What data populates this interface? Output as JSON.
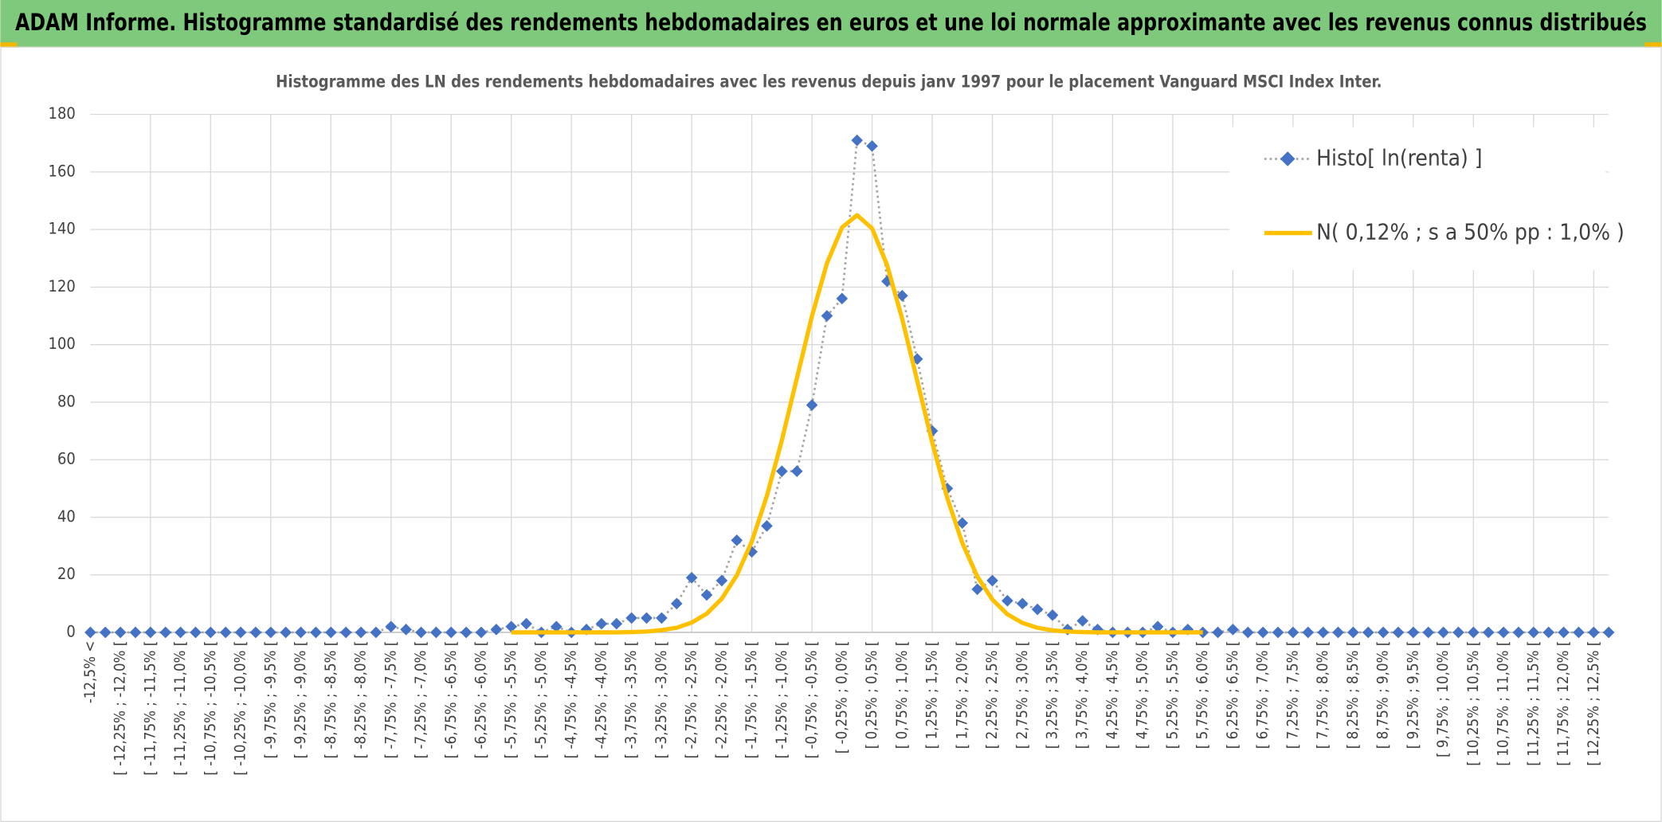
{
  "header": {
    "title": "ADAM Informe. Histogramme standardisé des rendements hebdomadaires en euros et une loi normale approximante avec les revenus connus distribués"
  },
  "chart_data": {
    "type": "line",
    "title": "Histogramme des LN des rendements hebdomadaires avec les revenus depuis janv 1997 pour le placement Vanguard MSCI Index Inter.",
    "categories": [
      "-12,5% <",
      null,
      "[ -12,25% ; -12,0% [",
      null,
      "[ -11,75% ; -11,5% [",
      null,
      "[ -11,25% ; -11,0% [",
      null,
      "[ -10,75% ; -10,5% [",
      null,
      "[ -10,25% ; -10,0% [",
      null,
      "[ -9,75% ; -9,5% [",
      null,
      "[ -9,25% ; -9,0% [",
      null,
      "[ -8,75% ; -8,5% [",
      null,
      "[ -8,25% ; -8,0% [",
      null,
      "[ -7,75% ; -7,5% [",
      null,
      "[ -7,25% ; -7,0% [",
      null,
      "[ -6,75% ; -6,5% [",
      null,
      "[ -6,25% ; -6,0% [",
      null,
      "[ -5,75% ; -5,5% [",
      null,
      "[ -5,25% ; -5,0% [",
      null,
      "[ -4,75% ; -4,5% [",
      null,
      "[ -4,25% ; -4,0% [",
      null,
      "[ -3,75% ; -3,5% [",
      null,
      "[ -3,25% ; -3,0% [",
      null,
      "[ -2,75% ; -2,5% [",
      null,
      "[ -2,25% ; -2,0% [",
      null,
      "[ -1,75% ; -1,5% [",
      null,
      "[ -1,25% ; -1,0% [",
      null,
      "[ -0,75% ; -0,5% [",
      null,
      "[ -0,25% ; 0,0% [",
      null,
      "[ 0,25% ; 0,5% [",
      null,
      "[ 0,75% ; 1,0% [",
      null,
      "[ 1,25% ; 1,5% [",
      null,
      "[ 1,75% ; 2,0% [",
      null,
      "[ 2,25% ; 2,5% [",
      null,
      "[ 2,75% ; 3,0% [",
      null,
      "[ 3,25% ; 3,5% [",
      null,
      "[ 3,75% ; 4,0% [",
      null,
      "[ 4,25% ; 4,5% [",
      null,
      "[ 4,75% ; 5,0% [",
      null,
      "[ 5,25% ; 5,5% [",
      null,
      "[ 5,75% ; 6,0% [",
      null,
      "[ 6,25% ; 6,5% [",
      null,
      "[ 6,75% ; 7,0% [",
      null,
      "[ 7,25% ; 7,5% [",
      null,
      "[ 7,75% ; 8,0% [",
      null,
      "[ 8,25% ; 8,5% [",
      null,
      "[ 8,75% ; 9,0% [",
      null,
      "[ 9,25% ; 9,5% [",
      null,
      "[ 9,75% ; 10,0% [",
      null,
      "[ 10,25% ; 10,5% [",
      null,
      "[ 10,75% ; 11,0% [",
      null,
      "[ 11,25% ; 11,5% [",
      null,
      "[ 11,75% ; 12,0% [",
      null,
      "[ 12,25% ; 12,5% [",
      null
    ],
    "series": [
      {
        "name": "Histo[ ln(renta) ]",
        "color": "#4472c4",
        "line_color": "#a5a5a5",
        "line_style": "dotted",
        "marker": "diamond",
        "values": [
          0,
          0,
          0,
          0,
          0,
          0,
          0,
          0,
          0,
          0,
          0,
          0,
          0,
          0,
          0,
          0,
          0,
          0,
          0,
          0,
          2,
          1,
          0,
          0,
          0,
          0,
          0,
          1,
          2,
          3,
          0,
          2,
          0,
          1,
          3,
          3,
          5,
          5,
          5,
          10,
          19,
          13,
          18,
          32,
          28,
          37,
          56,
          56,
          79,
          110,
          116,
          171,
          169,
          122,
          117,
          95,
          70,
          50,
          38,
          15,
          18,
          11,
          10,
          8,
          6,
          1,
          4,
          1,
          0,
          0,
          0,
          2,
          0,
          1,
          0,
          0,
          1,
          0,
          0,
          0,
          0,
          0,
          0,
          0,
          0,
          0,
          0,
          0,
          0,
          0,
          0,
          0,
          0,
          0,
          0,
          0,
          0,
          0,
          0,
          0,
          0,
          0
        ]
      },
      {
        "name": "N( 0,12% ; s a 50% pp : 1,0% )",
        "color": "#ffc000",
        "line_style": "solid",
        "values": [
          null,
          null,
          null,
          null,
          null,
          null,
          null,
          null,
          null,
          null,
          null,
          null,
          null,
          null,
          null,
          null,
          null,
          null,
          null,
          null,
          null,
          null,
          null,
          null,
          null,
          null,
          null,
          null,
          0,
          0,
          0,
          0,
          0,
          0,
          0,
          0,
          0.1,
          0.3,
          0.8,
          1.6,
          3.4,
          6.5,
          11.7,
          19.8,
          31.6,
          47.4,
          66.8,
          88.4,
          109.9,
          128.3,
          140.7,
          145,
          140.4,
          127.6,
          109,
          87.5,
          66,
          46.7,
          31.1,
          19.4,
          11.4,
          6.3,
          3.3,
          1.6,
          0.7,
          0.3,
          0.1,
          0,
          0,
          0,
          0,
          0,
          0,
          0,
          0,
          null,
          null,
          null,
          null,
          null,
          null,
          null,
          null,
          null,
          null,
          null,
          null,
          null,
          null,
          null,
          null,
          null,
          null,
          null,
          null,
          null,
          null,
          null,
          null,
          null,
          null,
          null
        ]
      }
    ],
    "ylim": [
      0,
      180
    ],
    "yticks": [
      0,
      20,
      40,
      60,
      80,
      100,
      120,
      140,
      160,
      180
    ],
    "grid": true,
    "legend": "top-right"
  }
}
